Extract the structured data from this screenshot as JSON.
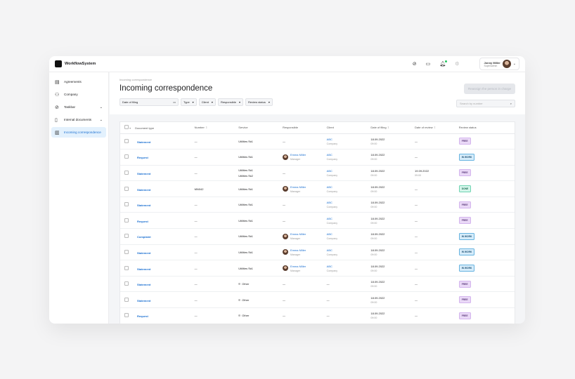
{
  "app": {
    "name": "WorkflowSystem"
  },
  "user": {
    "name": "Jonny Miller",
    "role": "Superadmin"
  },
  "sidebar": {
    "items": [
      {
        "label": "Agreements",
        "icon": "document-icon"
      },
      {
        "label": "Company",
        "icon": "users-icon"
      },
      {
        "label": "Taskbar",
        "icon": "check-circle-icon",
        "expandable": true
      },
      {
        "label": "Internal documents",
        "icon": "folder-icon",
        "expandable": true
      },
      {
        "label": "Incoming correspondence",
        "icon": "inbox-icon",
        "active": true
      }
    ]
  },
  "page": {
    "breadcrumb": "Incoming correspondence",
    "title": "Incoming correspondence",
    "reassign_label": "Reassign the person in charge",
    "search_placeholder": "Search by number"
  },
  "filters": {
    "date": "Date of filing",
    "type": "Type",
    "client": "Client",
    "responsible": "Responsible",
    "status": "Review status"
  },
  "table": {
    "columns": [
      "Document type",
      "Number",
      "Service",
      "Responsible",
      "Client",
      "Date of filing",
      "Date of review",
      "Review status"
    ],
    "rows": [
      {
        "type": "Statement",
        "number": "—",
        "service": [
          "Utilities №1"
        ],
        "resp": null,
        "client": "ABC",
        "client_sub": "Company",
        "filed": "18.09.2022",
        "filed_t": "09:00",
        "review": "—",
        "review_t": "",
        "status": "FREE"
      },
      {
        "type": "Request",
        "number": "—",
        "service": [
          "Utilities №1"
        ],
        "resp": {
          "name": "Emma Miller",
          "role": "Manager"
        },
        "client": "ABC",
        "client_sub": "Company",
        "filed": "18.09.2022",
        "filed_t": "09:00",
        "review": "—",
        "review_t": "",
        "status": "IN WORK"
      },
      {
        "type": "Statement",
        "number": "—",
        "service": [
          "Utilities №1",
          "Utilities №2"
        ],
        "resp": null,
        "client": "ABC",
        "client_sub": "Company",
        "filed": "18.09.2022",
        "filed_t": "09:00",
        "review": "19.09.2022",
        "review_t": "09:00",
        "status": "FREE"
      },
      {
        "type": "Statement",
        "number": "MN042",
        "service": [
          "Utilities №1"
        ],
        "resp": {
          "name": "Emma Miller",
          "role": "Manager"
        },
        "client": "ABC",
        "client_sub": "Company",
        "filed": "18.09.2022",
        "filed_t": "09:00",
        "review": "—",
        "review_t": "",
        "status": "DONE"
      },
      {
        "type": "Statement",
        "number": "—",
        "service": [
          "Utilities №1"
        ],
        "resp": null,
        "client": "ABC",
        "client_sub": "Company",
        "filed": "18.09.2022",
        "filed_t": "09:00",
        "review": "—",
        "review_t": "",
        "status": "FREE"
      },
      {
        "type": "Request",
        "number": "—",
        "service": [
          "Utilities №1"
        ],
        "resp": null,
        "client": "ABC",
        "client_sub": "Company",
        "filed": "18.09.2022",
        "filed_t": "09:00",
        "review": "—",
        "review_t": "",
        "status": "FREE"
      },
      {
        "type": "Complaint",
        "number": "—",
        "service": [
          "Utilities №1"
        ],
        "resp": {
          "name": "Emma Miller",
          "role": "Manager"
        },
        "client": "ABC",
        "client_sub": "Company",
        "filed": "18.09.2022",
        "filed_t": "09:00",
        "review": "—",
        "review_t": "",
        "status": "IN WORK"
      },
      {
        "type": "Statement",
        "number": "—",
        "service": [
          "Utilities №1"
        ],
        "resp": {
          "name": "Emma Miller",
          "role": "Manager"
        },
        "client": "ABC",
        "client_sub": "Company",
        "filed": "18.09.2022",
        "filed_t": "09:00",
        "review": "—",
        "review_t": "",
        "status": "IN WORK"
      },
      {
        "type": "Statement",
        "number": "—",
        "service": [
          "Utilities №1"
        ],
        "resp": {
          "name": "Emma Miller",
          "role": "Manager"
        },
        "client": "ABC",
        "client_sub": "Company",
        "filed": "18.09.2022",
        "filed_t": "09:00",
        "review": "—",
        "review_t": "",
        "status": "IN WORK"
      },
      {
        "type": "Statement",
        "number": "—",
        "service": [
          "Other"
        ],
        "resp": null,
        "client": "—",
        "client_sub": "",
        "filed": "18.09.2022",
        "filed_t": "09:00",
        "review": "—",
        "review_t": "",
        "status": "FREE"
      },
      {
        "type": "Statement",
        "number": "—",
        "service": [
          "Other"
        ],
        "resp": null,
        "client": "—",
        "client_sub": "",
        "filed": "18.09.2022",
        "filed_t": "09:00",
        "review": "—",
        "review_t": "",
        "status": "FREE"
      },
      {
        "type": "Request",
        "number": "—",
        "service": [
          "Other"
        ],
        "resp": null,
        "client": "—",
        "client_sub": "",
        "filed": "18.09.2022",
        "filed_t": "09:00",
        "review": "—",
        "review_t": "",
        "status": "FREE"
      }
    ]
  },
  "status_colors": {
    "FREE": {
      "bg": "#ead9f7",
      "border": "#d4b5ee",
      "fg": "#5b3a7a"
    },
    "IN WORK": {
      "bg": "#d6ecfa",
      "border": "#66b3e0",
      "fg": "#1d4f73"
    },
    "DONE": {
      "bg": "#d4f5ea",
      "border": "#6fd4b2",
      "fg": "#1d6b52"
    }
  }
}
